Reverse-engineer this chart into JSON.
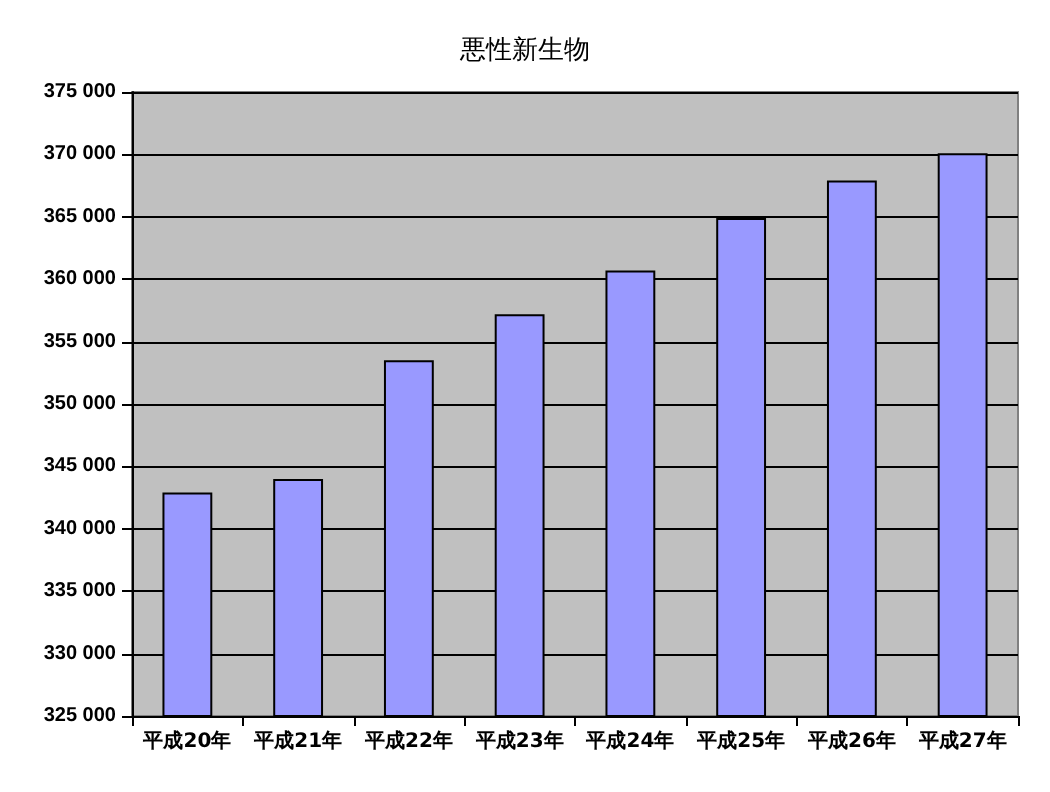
{
  "chart_data": {
    "type": "bar",
    "title": "悪性新生物",
    "categories": [
      "平成20年",
      "平成21年",
      "平成22年",
      "平成23年",
      "平成24年",
      "平成25年",
      "平成26年",
      "平成27年"
    ],
    "values": [
      342900,
      344000,
      353500,
      357200,
      360700,
      364900,
      367900,
      370100
    ],
    "color": "#9999ff",
    "ylim": [
      325000,
      375000
    ],
    "yticks": [
      {
        "value": 325000,
        "label": "325 000"
      },
      {
        "value": 330000,
        "label": "330 000"
      },
      {
        "value": 335000,
        "label": "335 000"
      },
      {
        "value": 340000,
        "label": "340 000"
      },
      {
        "value": 345000,
        "label": "345 000"
      },
      {
        "value": 350000,
        "label": "350 000"
      },
      {
        "value": 355000,
        "label": "355 000"
      },
      {
        "value": 360000,
        "label": "360 000"
      },
      {
        "value": 365000,
        "label": "365 000"
      },
      {
        "value": 370000,
        "label": "370 000"
      },
      {
        "value": 375000,
        "label": "375 000"
      }
    ],
    "grid": "y"
  }
}
